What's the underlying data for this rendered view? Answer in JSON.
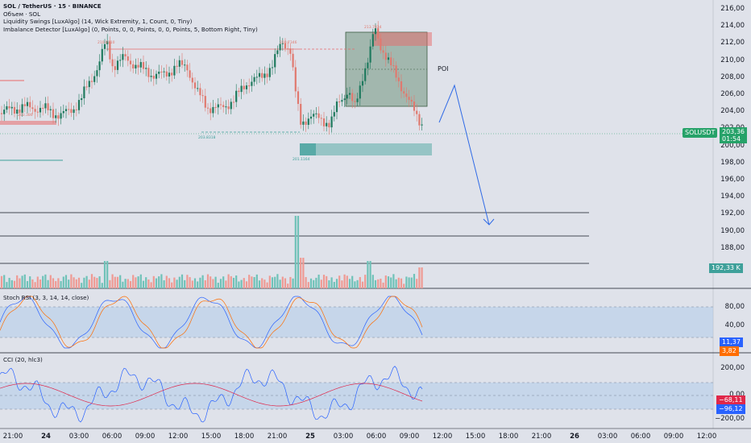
{
  "legend": {
    "title": "SOL / TetherUS · 15 · BINANCE",
    "volume": "Объем · SOL",
    "ind1": "Liquidity Swings [LuxAlgo] (14, Wick Extremity, 1, Count, 0, Tiny)",
    "ind2": "Imbalance Detector [LuxAlgo] (0, Points, 0, 0, Points, 0, 0, Points, 5, Bottom Right, Tiny)"
  },
  "price_axis": [
    "216,00",
    "214,00",
    "212,00",
    "210,00",
    "208,00",
    "206,00",
    "204,00",
    "202,00",
    "200,00",
    "198,00",
    "196,00",
    "194,00",
    "192,00",
    "190,00",
    "188,00"
  ],
  "price_badge": {
    "symbol": "SOLUSDT",
    "price": "203,36",
    "timer": "01:54"
  },
  "volume_badge": "192,33 K",
  "poi_label": "POI",
  "stoch": {
    "label": "Stoch RSI (3, 3, 14, 14, close)",
    "axis": [
      "80,00",
      "40,00"
    ],
    "k": "11,37",
    "d": "3,82"
  },
  "cci": {
    "label": "CCI (20, hlc3)",
    "axis": [
      "200,00",
      "0,00",
      "−200,00"
    ],
    "v1": "−68,11",
    "v2": "−96,12"
  },
  "time_axis": [
    {
      "t": "21:00",
      "bold": false
    },
    {
      "t": "24",
      "bold": true
    },
    {
      "t": "03:00",
      "bold": false
    },
    {
      "t": "06:00",
      "bold": false
    },
    {
      "t": "09:00",
      "bold": false
    },
    {
      "t": "12:00",
      "bold": false
    },
    {
      "t": "15:00",
      "bold": false
    },
    {
      "t": "18:00",
      "bold": false
    },
    {
      "t": "21:00",
      "bold": false
    },
    {
      "t": "25",
      "bold": true
    },
    {
      "t": "03:00",
      "bold": false
    },
    {
      "t": "06:00",
      "bold": false
    },
    {
      "t": "09:00",
      "bold": false
    },
    {
      "t": "12:00",
      "bold": false
    },
    {
      "t": "15:00",
      "bold": false
    },
    {
      "t": "18:00",
      "bold": false
    },
    {
      "t": "21:00",
      "bold": false
    },
    {
      "t": "26",
      "bold": true
    },
    {
      "t": "03:00",
      "bold": false
    },
    {
      "t": "06:00",
      "bold": false
    },
    {
      "t": "09:00",
      "bold": false
    },
    {
      "t": "12:00",
      "bold": false
    }
  ],
  "tags": [
    "213.7834",
    "210.8310",
    "210.7346",
    "203.386",
    "203.8318",
    "201.1164"
  ],
  "colors": {
    "up": "#1f7a5e",
    "down": "#e0796f",
    "poi": "#4f7d5a",
    "bull_zone": "#3ea09a",
    "bear_zone": "#e86a6a",
    "band": "#a8c7eb",
    "arrow": "#2f6ae6"
  }
}
